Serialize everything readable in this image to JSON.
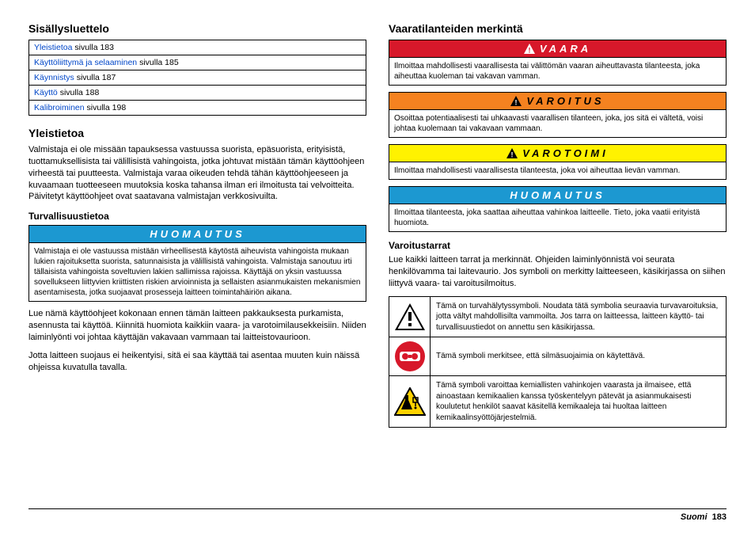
{
  "left": {
    "toc_heading": "Sisällysluettelo",
    "toc": [
      {
        "link": "Yleistietoa",
        "rest": " sivulla 183"
      },
      {
        "link": "Käyttöliittymä ja selaaminen",
        "rest": " sivulla 185"
      },
      {
        "link": "Käynnistys",
        "rest": " sivulla 187"
      },
      {
        "link": "Käyttö",
        "rest": " sivulla 188"
      },
      {
        "link": "Kalibroiminen",
        "rest": " sivulla 198"
      }
    ],
    "general_heading": "Yleistietoa",
    "general_p1": "Valmistaja ei ole missään tapauksessa vastuussa suorista, epäsuorista, erityisistä, tuottamuksellisista tai välillisistä vahingoista, jotka johtuvat mistään tämän käyttöohjeen virheestä tai puutteesta. Valmistaja varaa oikeuden tehdä tähän käyttöohjeeseen ja kuvaamaan tuotteeseen muutoksia koska tahansa ilman eri ilmoitusta tai velvoitteita. Päivitetyt käyttöohjeet ovat saatavana valmistajan verkkosivuilta.",
    "safety_heading": "Turvallisuustietoa",
    "notice": {
      "title": "HUOMAUTUS",
      "bg": "#1c98d1",
      "fg": "#ffffff",
      "body": "Valmistaja ei ole vastuussa mistään virheellisestä käytöstä aiheuvista vahingoista mukaan lukien rajoituksetta suorista, satunnaisista ja välillisistä vahingoista. Valmistaja sanoutuu irti tällaisista vahingoista soveltuvien lakien sallimissa rajoissa. Käyttäjä on yksin vastuussa sovellukseen liittyvien kriittisten riskien arvioinnista ja sellaisten asianmukaisten mekanismien asentamisesta, jotka suojaavat prosesseja laitteen toimintahäiriön aikana."
    },
    "p_after_notice1": "Lue nämä käyttöohjeet kokonaan ennen tämän laitteen pakkauksesta purkamista, asennusta tai käyttöä. Kiinnitä huomiota kaikkiin vaara- ja varotoimilausekkeisiin. Niiden laiminlyönti voi johtaa käyttäjän vakavaan vammaan tai laitteistovaurioon.",
    "p_after_notice2": "Jotta laitteen suojaus ei heikentyisi, sitä ei saa käyttää tai asentaa muuten kuin näissä ohjeissa kuvatulla tavalla."
  },
  "right": {
    "hazard_heading": "Vaaratilanteiden merkintä",
    "boxes": [
      {
        "title": "VAARA",
        "bg": "#d7182a",
        "fg": "#ffffff",
        "icon": true,
        "body": "Ilmoittaa mahdollisesti vaarallisesta tai välittömän vaaran aiheuttavasta tilanteesta, joka aiheuttaa kuoleman tai vakavan vamman."
      },
      {
        "title": "VAROITUS",
        "bg": "#f58220",
        "fg": "#000000",
        "icon": true,
        "body": "Osoittaa potentiaalisesti tai uhkaavasti vaarallisen tilanteen, joka, jos sitä ei vältetä, voisi johtaa kuolemaan tai vakavaan vammaan."
      },
      {
        "title": "VAROTOIMI",
        "bg": "#fff200",
        "fg": "#000000",
        "icon": true,
        "body": "Ilmoittaa mahdollisesti vaarallisesta tilanteesta, joka voi aiheuttaa lievän vamman."
      },
      {
        "title": "HUOMAUTUS",
        "bg": "#1c98d1",
        "fg": "#ffffff",
        "icon": false,
        "body": "Ilmoittaa tilanteesta, joka saattaa aiheuttaa vahinkoa laitteelle. Tieto, joka vaatii erityistä huomiota."
      }
    ],
    "labels_heading": "Varoitustarrat",
    "labels_intro": "Lue kaikki laitteen tarrat ja merkinnät. Ohjeiden laiminlyönnistä voi seurata henkilövamma tai laitevaurio. Jos symboli on merkitty laitteeseen, käsikirjassa on siihen liittyvä vaara- tai varoitusilmoitus.",
    "labels": [
      {
        "icon": "alert",
        "text": "Tämä on turvahälytyssymboli. Noudata tätä symbolia seuraavia turvavaroituksia, jotta vältyt mahdollisilta vammoilta. Jos tarra on laitteessa, laitteen käyttö- tai turvallisuustiedot on annettu sen käsikirjassa."
      },
      {
        "icon": "goggles",
        "text": "Tämä symboli merkitsee, että silmäsuojaimia on käytettävä."
      },
      {
        "icon": "chemical",
        "text": "Tämä symboli varoittaa kemiallisten vahinkojen vaarasta ja ilmaisee, että ainoastaan kemikaalien kanssa työskentelyyn pätevät ja asianmukaisesti koulutetut henkilöt saavat käsitellä kemikaaleja tai huoltaa laitteen kemikaalinsyöttöjärjestelmiä."
      }
    ]
  },
  "footer": {
    "lang": "Suomi",
    "page": "183"
  }
}
